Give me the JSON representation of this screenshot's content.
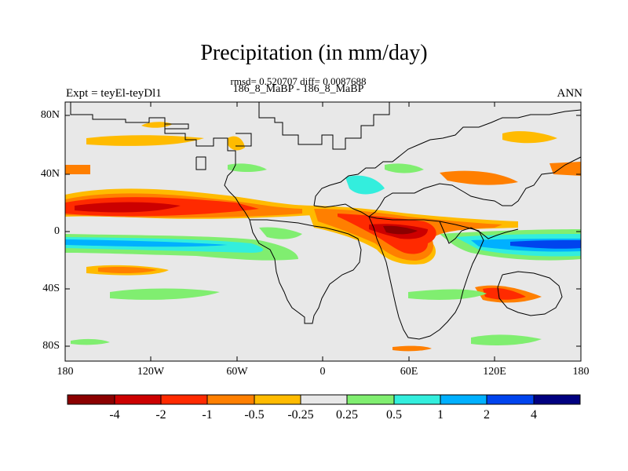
{
  "title": "Precipitation (in mm/day)",
  "stats": "rmsd= 0.520707 diff= 0.0087688",
  "period": "186_8_MaBP - 186_8_MaBP",
  "experiment": "Expt = teyEl-teyDl1",
  "season": "ANN",
  "map": {
    "y_ticks": [
      "80N",
      "40N",
      "0",
      "40S",
      "80S"
    ],
    "x_ticks": [
      "180",
      "120W",
      "60W",
      "0",
      "60E",
      "120E",
      "180"
    ],
    "background_color": "#e8e8e8",
    "coastline_color": "#000000"
  },
  "colorbar": {
    "labels": [
      "-4",
      "-2",
      "-1",
      "-0.5",
      "-0.25",
      "0.25",
      "0.5",
      "1",
      "2",
      "4"
    ],
    "colors": [
      "#8b0000",
      "#cc0000",
      "#ff2a00",
      "#ff7f00",
      "#ffbb00",
      "#e8e8e8",
      "#80ee70",
      "#33eedd",
      "#00b0ff",
      "#0044ee",
      "#000080"
    ]
  }
}
